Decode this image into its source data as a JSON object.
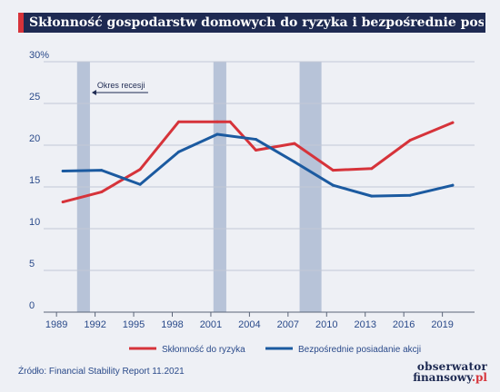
{
  "title": "Skłonność gospodarstw domowych do ryzyka i bezpośrednie posiadanie akcji",
  "source": "Źródło: Financial Stability Report 11.2021",
  "logo": {
    "line1": "obserwator",
    "line2": "finansowy",
    "line2_suffix": ".pl"
  },
  "colors": {
    "background": "#eef0f5",
    "title_bar": "#1e2a52",
    "accent_red": "#d6333a",
    "line_blue": "#1b5aa0",
    "recession_band": "#b7c3d8"
  },
  "chart_data": {
    "type": "line",
    "xlim": [
      1988,
      2021.5
    ],
    "ylim": [
      0,
      30
    ],
    "x_ticks": [
      1989,
      1992,
      1995,
      1998,
      2001,
      2004,
      2007,
      2010,
      2013,
      2016,
      2019
    ],
    "x_tick_labels": [
      "1989",
      "1992",
      "1995",
      "1998",
      "2001",
      "2004",
      "2007",
      "2010",
      "2013",
      "2016",
      "2019"
    ],
    "y_ticks": [
      0,
      5,
      10,
      15,
      20,
      25,
      30
    ],
    "y_tick_labels": [
      "0",
      "5",
      "10",
      "15",
      "20",
      "25",
      "30%"
    ],
    "grid": "horizontal",
    "legend_placement": "bottom",
    "recessions": [
      {
        "start": 1990.6,
        "end": 1991.6
      },
      {
        "start": 2001.2,
        "end": 2002.2
      },
      {
        "start": 2007.9,
        "end": 2009.6
      }
    ],
    "annotation": "Okres recesji",
    "series": [
      {
        "name": "Skłonność do ryzyka",
        "color": "#d6333a",
        "x": [
          1989.5,
          1992.5,
          1995.5,
          1998.5,
          2001.5,
          2002.5,
          2004.5,
          2007.5,
          2010.5,
          2013.5,
          2016.5,
          2019.8
        ],
        "values": [
          13.2,
          14.4,
          17.1,
          22.8,
          22.8,
          22.8,
          19.4,
          20.2,
          17.0,
          17.2,
          20.6,
          22.7
        ]
      },
      {
        "name": "Bezpośrednie posiadanie akcji",
        "color": "#1b5aa0",
        "x": [
          1989.5,
          1992.5,
          1995.5,
          1998.5,
          2001.5,
          2004.5,
          2007.5,
          2010.5,
          2013.5,
          2016.5,
          2019.8
        ],
        "values": [
          16.9,
          17.0,
          15.3,
          19.2,
          21.3,
          20.7,
          18.0,
          15.2,
          13.9,
          14.0,
          15.2
        ]
      }
    ]
  }
}
